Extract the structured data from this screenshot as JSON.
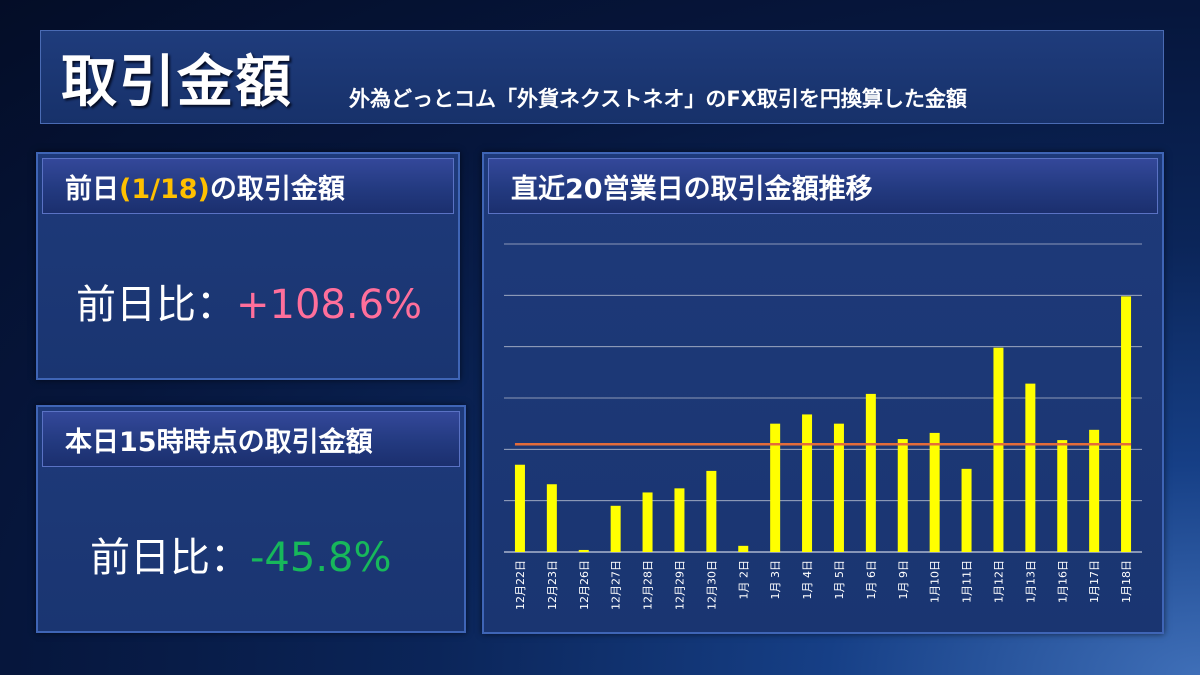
{
  "header": {
    "title": "取引金額",
    "subtitle": "外為どっとコム「外貨ネクストネオ」のFX取引を円換算した金額"
  },
  "prev_panel": {
    "title_prefix": "前日",
    "title_date": "(1/18)",
    "title_suffix": "の取引金額",
    "label": "前日比：",
    "value": "+108.6%"
  },
  "today_panel": {
    "title": "本日15時時点の取引金額",
    "label": "前日比：",
    "value": "-45.8%"
  },
  "colors": {
    "bar": "#ffff00",
    "average_line": "#e46c3a",
    "positive": "#ff6f9b",
    "negative": "#17b85b",
    "highlight": "#ffc000"
  },
  "chart_data": {
    "type": "bar",
    "title": "直近20営業日の取引金額推移",
    "categories": [
      "12月22日",
      "12月23日",
      "12月26日",
      "12月27日",
      "12月28日",
      "12月29日",
      "12月30日",
      "1月 2日",
      "1月 3日",
      "1月 4日",
      "1月 5日",
      "1月 6日",
      "1月 9日",
      "1月10日",
      "1月11日",
      "1月12日",
      "1月13日",
      "1月16日",
      "1月17日",
      "1月18日"
    ],
    "values": [
      8.5,
      6.6,
      0.2,
      4.5,
      5.8,
      6.2,
      7.9,
      0.6,
      12.5,
      13.4,
      12.5,
      15.4,
      11.0,
      11.6,
      8.1,
      19.9,
      16.4,
      10.9,
      11.9,
      24.9
    ],
    "average": 10.5,
    "ylim": [
      0,
      30
    ],
    "grid": true,
    "xlabel": "",
    "ylabel": ""
  }
}
